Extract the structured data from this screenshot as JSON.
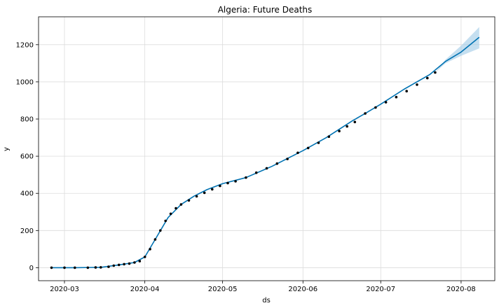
{
  "chart_data": {
    "type": "line",
    "title": "Algeria: Future Deaths",
    "xlabel": "ds",
    "ylabel": "y",
    "x_tick_labels": [
      "2020-03",
      "2020-04",
      "2020-05",
      "2020-06",
      "2020-07",
      "2020-08"
    ],
    "x_ticks": [
      "2020-03-01",
      "2020-04-01",
      "2020-05-01",
      "2020-06-01",
      "2020-07-01",
      "2020-08-01"
    ],
    "xlim": [
      "2020-02-20",
      "2020-08-14"
    ],
    "y_ticks": [
      0,
      200,
      400,
      600,
      800,
      1000,
      1200
    ],
    "ylim": [
      -70,
      1350
    ],
    "grid": true,
    "colors": {
      "forecast": "#0072B2",
      "band": "#9fc9e6",
      "points": "#000000"
    },
    "series": [
      {
        "kind": "points",
        "x": [
          "2020-02-25",
          "2020-03-01",
          "2020-03-05",
          "2020-03-10",
          "2020-03-13",
          "2020-03-15",
          "2020-03-18",
          "2020-03-20",
          "2020-03-22",
          "2020-03-24",
          "2020-03-26",
          "2020-03-28",
          "2020-03-30",
          "2020-04-01",
          "2020-04-03",
          "2020-04-05",
          "2020-04-07",
          "2020-04-09",
          "2020-04-11",
          "2020-04-13",
          "2020-04-15",
          "2020-04-18",
          "2020-04-21",
          "2020-04-24",
          "2020-04-27",
          "2020-04-30",
          "2020-05-03",
          "2020-05-06",
          "2020-05-10",
          "2020-05-14",
          "2020-05-18",
          "2020-05-22",
          "2020-05-26",
          "2020-05-30",
          "2020-06-03",
          "2020-06-07",
          "2020-06-11",
          "2020-06-15",
          "2020-06-18",
          "2020-06-21",
          "2020-06-25",
          "2020-06-29",
          "2020-07-03",
          "2020-07-07",
          "2020-07-11",
          "2020-07-15",
          "2020-07-19",
          "2020-07-22"
        ],
        "values": [
          0,
          0,
          0,
          0,
          1,
          2,
          5,
          11,
          15,
          19,
          22,
          28,
          35,
          58,
          100,
          152,
          200,
          252,
          290,
          320,
          340,
          362,
          384,
          403,
          422,
          440,
          455,
          465,
          485,
          511,
          535,
          560,
          585,
          618,
          644,
          672,
          705,
          735,
          760,
          784,
          830,
          862,
          890,
          918,
          950,
          985,
          1020,
          1050
        ]
      },
      {
        "kind": "forecast-line",
        "x": [
          "2020-02-25",
          "2020-03-05",
          "2020-03-15",
          "2020-03-22",
          "2020-03-28",
          "2020-04-01",
          "2020-04-05",
          "2020-04-10",
          "2020-04-15",
          "2020-04-20",
          "2020-04-25",
          "2020-05-01",
          "2020-05-10",
          "2020-05-20",
          "2020-06-01",
          "2020-06-10",
          "2020-06-20",
          "2020-06-25",
          "2020-07-01",
          "2020-07-10",
          "2020-07-20",
          "2020-07-26",
          "2020-08-01",
          "2020-08-08"
        ],
        "values": [
          0,
          0,
          2,
          15,
          28,
          58,
          152,
          270,
          340,
          385,
          420,
          452,
          485,
          545,
          630,
          700,
          790,
          830,
          880,
          960,
          1040,
          1110,
          1160,
          1240
        ]
      },
      {
        "kind": "uncertainty-band",
        "x": [
          "2020-07-22",
          "2020-07-26",
          "2020-08-01",
          "2020-08-08"
        ],
        "lower": [
          1050,
          1100,
          1140,
          1180
        ],
        "upper": [
          1050,
          1120,
          1195,
          1295
        ]
      }
    ]
  }
}
